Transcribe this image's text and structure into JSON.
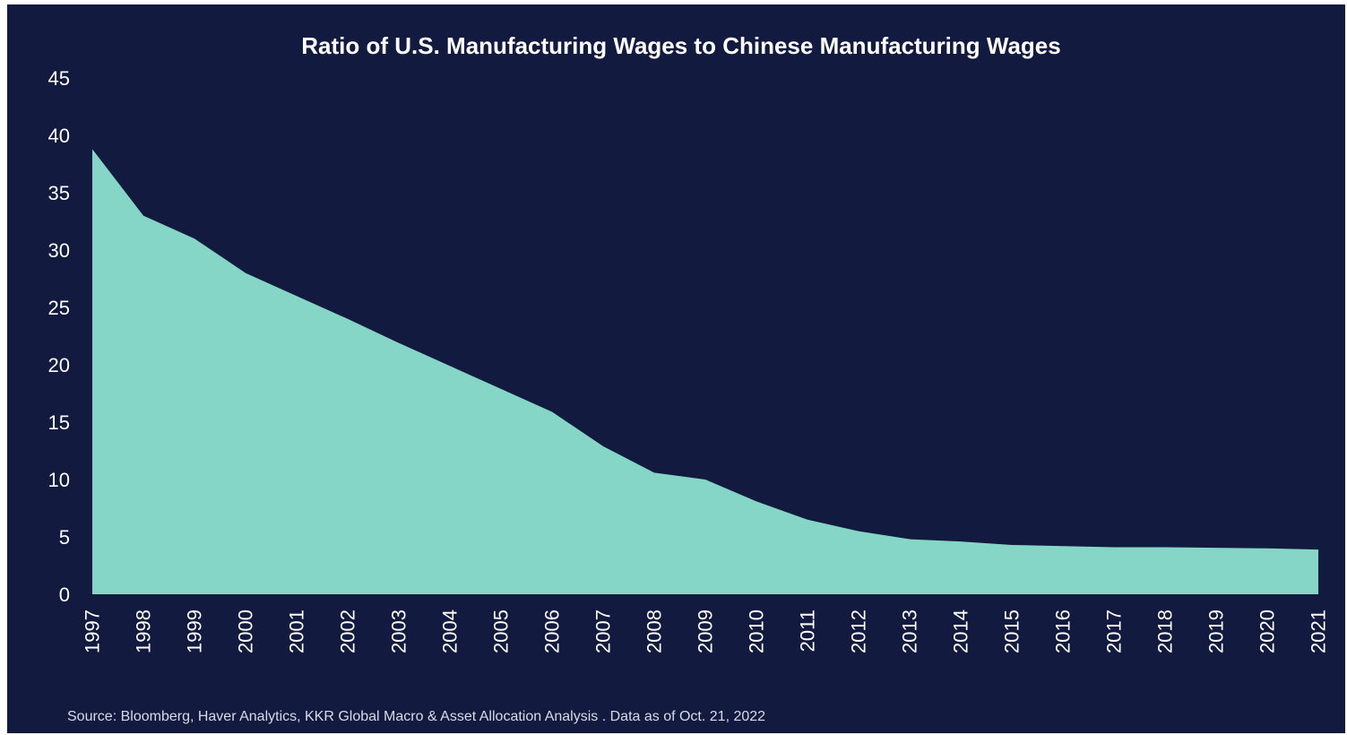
{
  "chart_data": {
    "type": "area",
    "title": "Ratio of U.S. Manufacturing Wages to Chinese Manufacturing Wages",
    "xlabel": "",
    "ylabel": "",
    "categories": [
      "1997",
      "1998",
      "1999",
      "2000",
      "2001",
      "2002",
      "2003",
      "2004",
      "2005",
      "2006",
      "2007",
      "2008",
      "2009",
      "2010",
      "2011",
      "2012",
      "2013",
      "2014",
      "2015",
      "2016",
      "2017",
      "2018",
      "2019",
      "2020",
      "2021"
    ],
    "series": [
      {
        "values": [
          38.8,
          33.0,
          31.0,
          28.0,
          26.0,
          24.0,
          21.9,
          19.9,
          17.9,
          15.9,
          12.9,
          10.6,
          10.0,
          8.1,
          6.5,
          5.5,
          4.8,
          4.6,
          4.3,
          4.2,
          4.1,
          4.1,
          4.05,
          4.0,
          3.9
        ]
      }
    ],
    "ylim": [
      0,
      45
    ],
    "y_ticks": [
      0,
      5,
      10,
      15,
      20,
      25,
      30,
      35,
      40,
      45
    ],
    "grid": false,
    "legend": "none",
    "source_note": "Source: Bloomberg, Haver Analytics, KKR Global Macro & Asset Allocation Analysis . Data as of Oct. 21, 2022"
  },
  "colors": {
    "background": "#131a3f",
    "area_fill": "#85d6c6",
    "text": "#ffffff",
    "source_text": "#d8dbe6"
  }
}
